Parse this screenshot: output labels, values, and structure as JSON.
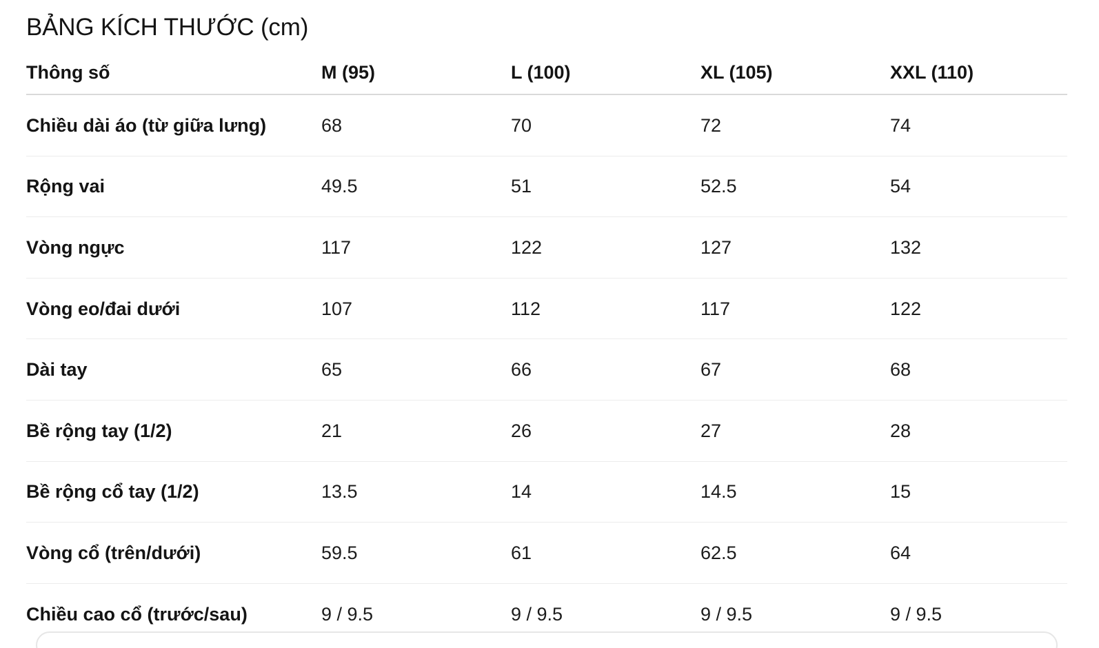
{
  "title": "BẢNG KÍCH THƯỚC (cm)",
  "table": {
    "headers": [
      "Thông số",
      "M (95)",
      "L (100)",
      "XL (105)",
      "XXL (110)"
    ],
    "rows": [
      {
        "label": "Chiều dài áo (từ giữa lưng)",
        "values": [
          "68",
          "70",
          "72",
          "74"
        ]
      },
      {
        "label": "Rộng vai",
        "values": [
          "49.5",
          "51",
          "52.5",
          "54"
        ]
      },
      {
        "label": "Vòng ngực",
        "values": [
          "117",
          "122",
          "127",
          "132"
        ]
      },
      {
        "label": "Vòng eo/đai dưới",
        "values": [
          "107",
          "112",
          "117",
          "122"
        ]
      },
      {
        "label": "Dài tay",
        "values": [
          "65",
          "66",
          "67",
          "68"
        ]
      },
      {
        "label": "Bề rộng tay (1/2)",
        "values": [
          "21",
          "26",
          "27",
          "28"
        ]
      },
      {
        "label": "Bề rộng cổ tay (1/2)",
        "values": [
          "13.5",
          "14",
          "14.5",
          "15"
        ]
      },
      {
        "label": "Vòng cổ (trên/dưới)",
        "values": [
          "59.5",
          "61",
          "62.5",
          "64"
        ]
      },
      {
        "label": "Chiều cao cổ (trước/sau)",
        "values": [
          "9 / 9.5",
          "9 / 9.5",
          "9 / 9.5",
          "9 / 9.5"
        ]
      }
    ]
  }
}
